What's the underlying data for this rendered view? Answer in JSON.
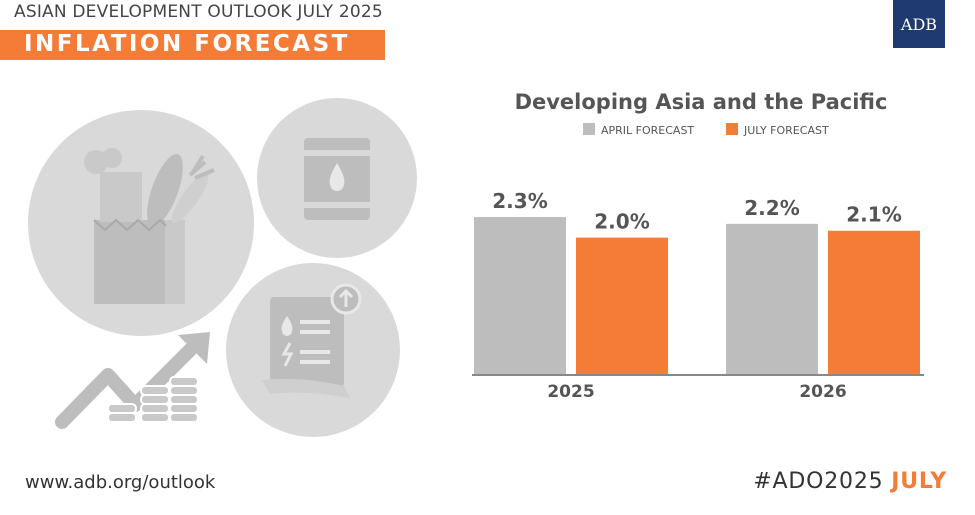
{
  "header": {
    "supertitle": "ASIAN DEVELOPMENT OUTLOOK JULY 2025",
    "banner": "INFLATION FORECAST",
    "logo": "ADB"
  },
  "footer": {
    "url": "www.adb.org/outlook",
    "hashtag": "#ADO2025",
    "hashtag_highlight": "JULY"
  },
  "icons": [
    "grocery-bag-icon",
    "oil-barrel-icon",
    "price-increase-document-icon",
    "rising-arrow-coins-icon"
  ],
  "colors": {
    "accent": "#f47c36",
    "april": "#bdbdbd",
    "july": "#f47c36",
    "icon_circle": "#d9d9d9",
    "icon_glyph": "#bdbdbd",
    "logo_bg": "#1e3a6e"
  },
  "chart_data": {
    "type": "bar",
    "title": "Developing Asia and the Pacific",
    "categories": [
      "2025",
      "2026"
    ],
    "series": [
      {
        "name": "APRIL FORECAST",
        "values": [
          2.3,
          2.2
        ],
        "labels": [
          "2.3%",
          "2.2%"
        ]
      },
      {
        "name": "JULY FORECAST",
        "values": [
          2.0,
          2.1
        ],
        "labels": [
          "2.0%",
          "2.1%"
        ]
      }
    ],
    "ylim": [
      0,
      2.3
    ],
    "unit": "%",
    "grid": false,
    "legend": "top-center"
  }
}
